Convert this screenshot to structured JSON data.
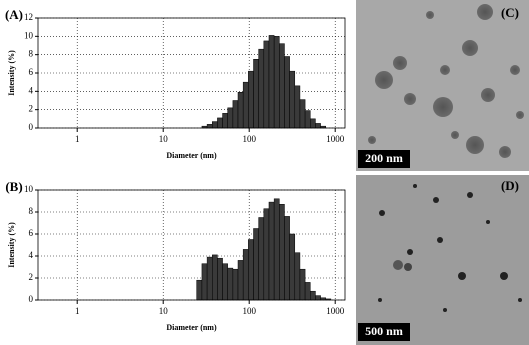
{
  "chart_data": [
    {
      "type": "histogram",
      "panel": "(A)",
      "xlabel": "Diameter (nm)",
      "ylabel": "Intensity (%)",
      "xscale": "log",
      "grid": true,
      "color": "#3a3a3a",
      "bins": [
        28.2,
        32.4,
        37.2,
        42.7,
        49.0,
        56.2,
        64.6,
        74.1,
        85.1,
        97.7,
        112.2,
        128.8,
        147.9,
        169.8,
        195.0,
        223.9,
        257.0,
        295.1,
        338.8,
        389.0,
        446.7,
        512.9,
        588.8,
        676.1,
        776.2
      ],
      "counts": [
        0.2,
        0.4,
        0.7,
        1.1,
        1.6,
        2.2,
        3.0,
        3.9,
        5.0,
        6.2,
        7.5,
        8.6,
        9.5,
        10.1,
        10.0,
        9.2,
        7.8,
        6.2,
        4.6,
        3.1,
        1.9,
        1.0,
        0.5,
        0.2
      ],
      "xlim": [
        0.35,
        1300
      ],
      "xticks": [
        1,
        10,
        100,
        1000
      ],
      "ylim": [
        0,
        12
      ],
      "yticks": [
        0,
        2,
        4,
        6,
        8,
        10,
        12
      ]
    },
    {
      "type": "histogram",
      "panel": "(B)",
      "xlabel": "Diameter (nm)",
      "ylabel": "Intensity (%)",
      "xscale": "log",
      "grid": true,
      "color": "#3a3a3a",
      "bins": [
        24.5,
        28.2,
        32.4,
        37.2,
        42.7,
        49.0,
        56.2,
        64.6,
        74.1,
        85.1,
        97.7,
        112.2,
        128.8,
        147.9,
        169.8,
        195.0,
        223.9,
        257.0,
        295.1,
        338.8,
        389.0,
        446.7,
        512.9,
        588.8,
        676.1,
        776.2,
        891.3
      ],
      "counts": [
        1.8,
        3.3,
        3.9,
        4.1,
        3.8,
        3.3,
        2.9,
        2.8,
        3.6,
        4.6,
        5.5,
        6.5,
        7.5,
        8.3,
        8.9,
        9.2,
        8.7,
        7.6,
        6.0,
        4.3,
        2.8,
        1.6,
        0.8,
        0.4,
        0.2,
        0.1
      ],
      "xlim": [
        0.35,
        1300
      ],
      "xticks": [
        1,
        10,
        100,
        1000
      ],
      "ylim": [
        0,
        10
      ],
      "yticks": [
        0,
        2,
        4,
        6,
        8,
        10
      ]
    }
  ],
  "images": [
    {
      "label": "(C)",
      "scale": "200 nm"
    },
    {
      "label": "(D)",
      "scale": "500 nm"
    }
  ]
}
